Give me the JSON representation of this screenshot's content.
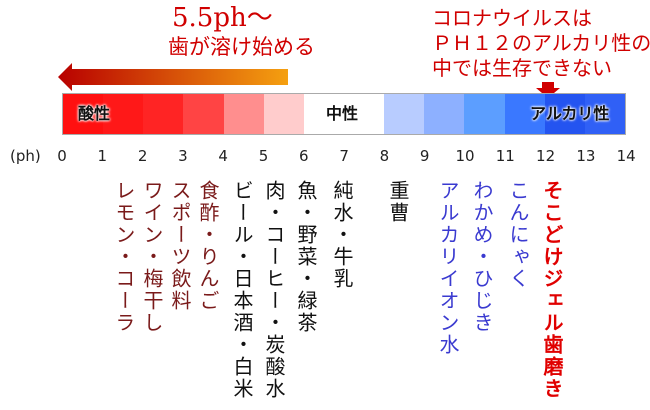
{
  "annotation_left": {
    "line1": "5.5ph～",
    "line2": "歯が溶け始める"
  },
  "annotation_right": {
    "line1": "コロナウイルスは",
    "line2": "ＰＨ１２のアルカリ性の",
    "line3": "中では生存できない"
  },
  "bar": {
    "labels": {
      "acid": "酸性",
      "neutral": "中性",
      "alkaline": "アルカリ性"
    },
    "segment_colors": [
      "#ff1010",
      "#ff1818",
      "#ff2424",
      "#ff4444",
      "#ff8e8e",
      "#ffcccc",
      "#ffffff",
      "#ffffff",
      "#b8ccff",
      "#8db0ff",
      "#5c9eff",
      "#3a78ff",
      "#2454f0",
      "#3060f6"
    ]
  },
  "axis": {
    "unit": "(ph)",
    "ticks": [
      "0",
      "1",
      "2",
      "3",
      "4",
      "5",
      "6",
      "7",
      "8",
      "9",
      "10",
      "11",
      "12",
      "13",
      "14"
    ]
  },
  "columns": [
    {
      "text": "レモン・コーラ",
      "color": "#7a1a1a"
    },
    {
      "text": "ワイン・梅干し",
      "color": "#7a1a1a"
    },
    {
      "text": "スポーツ飲料",
      "color": "#7a1a1a"
    },
    {
      "text": "食酢・りんご",
      "color": "#7a1a1a"
    },
    {
      "text": "ビール・日本酒・白米",
      "color": "#111111"
    },
    {
      "text": "肉・コーヒー・炭酸水",
      "color": "#111111"
    },
    {
      "text": "魚・野菜・緑茶",
      "color": "#111111"
    },
    {
      "text": "純水・牛乳",
      "color": "#111111"
    },
    {
      "text": "重曹",
      "color": "#111111"
    },
    {
      "text": "アルカリイオン水",
      "color": "#3a3ad0"
    },
    {
      "text": "わかめ・ひじき",
      "color": "#3a3ad0"
    },
    {
      "text": "こんにゃく",
      "color": "#3a3ad0"
    },
    {
      "text": "そこどけジェル歯磨き",
      "color": "#e00000"
    }
  ]
}
